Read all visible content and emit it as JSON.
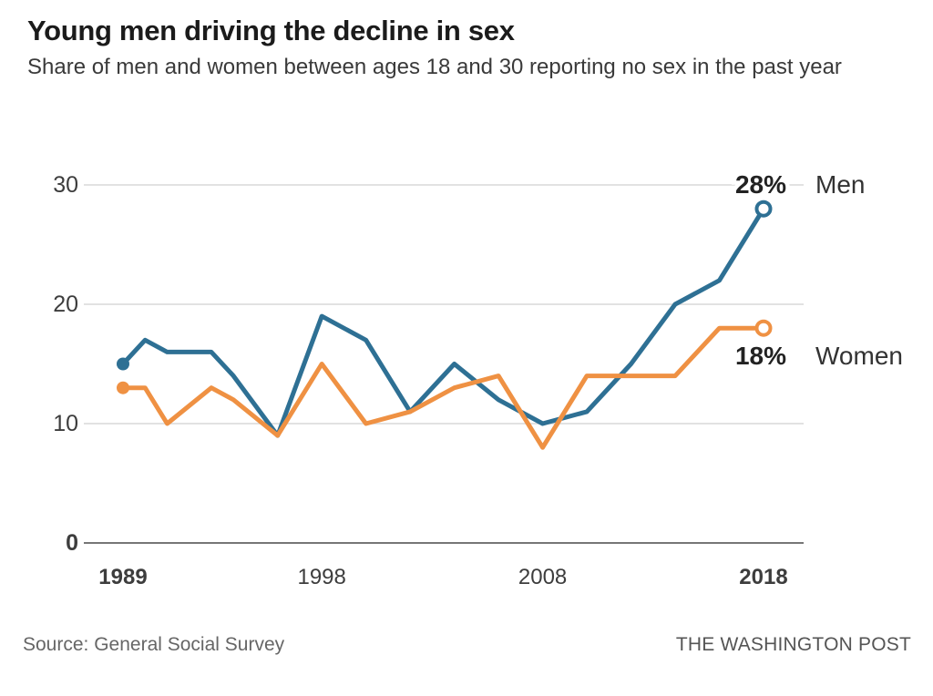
{
  "page": {
    "title": "Young men driving the decline in sex",
    "subtitle": "Share of men and women between ages 18 and 30 reporting no sex in the past year",
    "footer_source": "Source: General Social Survey",
    "footer_brand": "THE WASHINGTON POST"
  },
  "chart_data": {
    "type": "line",
    "title": "Young men driving the decline in sex",
    "subtitle": "Share of men and women between ages 18 and 30 reporting no sex in the past year",
    "x": [
      1989,
      1990,
      1991,
      1993,
      1994,
      1996,
      1998,
      2000,
      2002,
      2004,
      2006,
      2008,
      2010,
      2012,
      2014,
      2016,
      2018
    ],
    "series": [
      {
        "name": "Men",
        "end_label": "28%",
        "color": "#2e7094",
        "values": [
          15,
          17,
          16,
          16,
          14,
          9,
          19,
          17,
          11,
          15,
          12,
          10,
          11,
          15,
          20,
          22,
          28
        ]
      },
      {
        "name": "Women",
        "end_label": "18%",
        "color": "#ef9143",
        "values": [
          13,
          13,
          10,
          13,
          12,
          9,
          15,
          10,
          11,
          13,
          14,
          8,
          14,
          14,
          14,
          18,
          18
        ]
      }
    ],
    "xlim": [
      1989,
      2018
    ],
    "ylim": [
      0,
      30
    ],
    "xticks": {
      "values": [
        1989,
        1998,
        2008,
        2018
      ],
      "bold": [
        1989,
        2018
      ]
    },
    "yticks": {
      "values": [
        30,
        20,
        10,
        0
      ],
      "bold": [
        0
      ]
    },
    "grid": "horizontal-only",
    "legend_position": "right-end-labels",
    "marker_start": "filled-dot",
    "marker_end": "open-circle"
  },
  "colors": {
    "men_line": "#2e7094",
    "women_line": "#ef9143",
    "gridline": "#d8d8d8",
    "zero_line": "#767676",
    "tick_label": "#3d3d3d",
    "end_value_label": "#222222",
    "end_name_label": "#333333"
  }
}
